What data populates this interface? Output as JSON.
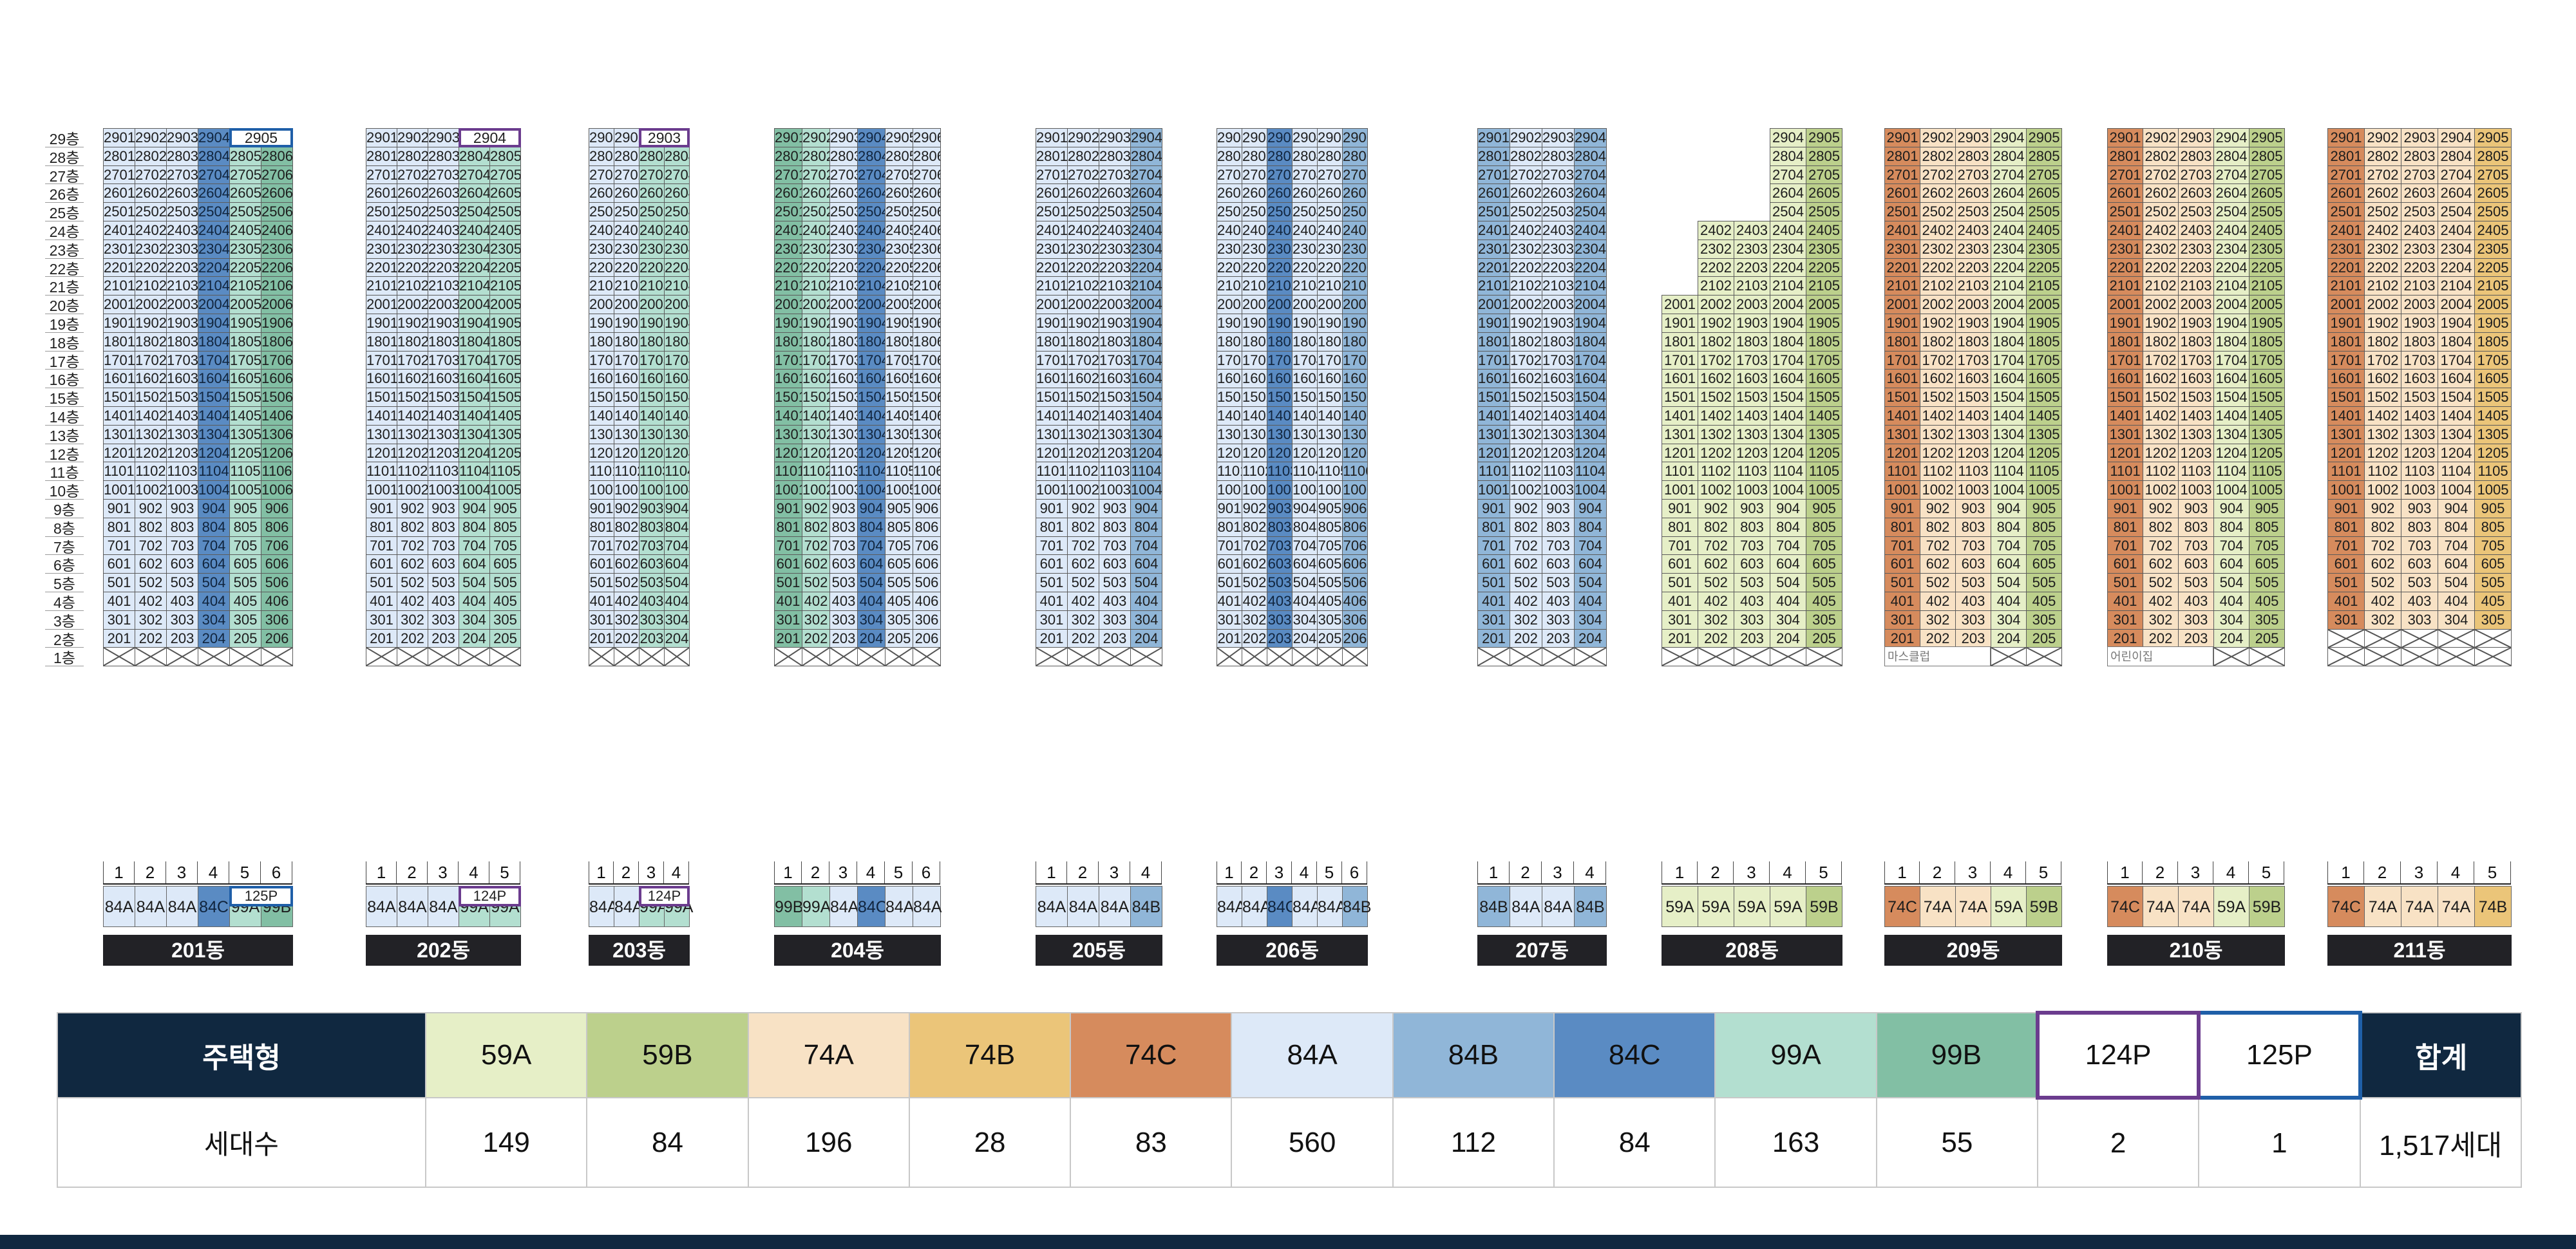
{
  "floor_labels": [
    "29층",
    "28층",
    "27층",
    "26층",
    "25층",
    "24층",
    "23층",
    "22층",
    "21층",
    "20층",
    "19층",
    "18층",
    "17층",
    "16층",
    "15층",
    "14층",
    "13층",
    "12층",
    "11층",
    "10층",
    "9층",
    "8층",
    "7층",
    "6층",
    "5층",
    "4층",
    "3층",
    "2층",
    "1층"
  ],
  "colors": {
    "59A": "#e6efc7",
    "59B": "#bcd08c",
    "74A": "#f8e2c5",
    "74B": "#ebc579",
    "74C": "#d68b5d",
    "84A": "#dde9f8",
    "84B": "#90b6d8",
    "84C": "#5a8bc3",
    "99A": "#b3dfd0",
    "99B": "#82bfa4",
    "124P": "#6b3c8e",
    "125P": "#1f5fa8"
  },
  "buildings": [
    {
      "name": "201동",
      "lines": [
        "1",
        "2",
        "3",
        "4",
        "5",
        "6"
      ],
      "types": [
        "84A",
        "84A",
        "84A",
        "84C",
        "99A",
        "99B"
      ],
      "penthouse": {
        "label": "2905",
        "type": "125P"
      },
      "note": ""
    },
    {
      "name": "202동",
      "lines": [
        "1",
        "2",
        "3",
        "4",
        "5"
      ],
      "types": [
        "84A",
        "84A",
        "84A",
        "99A",
        "99A"
      ],
      "penthouse": {
        "label": "2904",
        "type": "124P"
      },
      "note": ""
    },
    {
      "name": "203동",
      "lines": [
        "1",
        "2",
        "3",
        "4"
      ],
      "types": [
        "84A",
        "84A",
        "99A",
        "99A"
      ],
      "penthouse": {
        "label": "2903",
        "type": "124P"
      },
      "note": ""
    },
    {
      "name": "204동",
      "lines": [
        "1",
        "2",
        "3",
        "4",
        "5",
        "6"
      ],
      "types": [
        "99B",
        "99A",
        "84A",
        "84C",
        "84A",
        "84A"
      ],
      "penthouse": null,
      "note": ""
    },
    {
      "name": "205동",
      "lines": [
        "1",
        "2",
        "3",
        "4"
      ],
      "types": [
        "84A",
        "84A",
        "84A",
        "84B"
      ],
      "penthouse": null,
      "note": ""
    },
    {
      "name": "206동",
      "lines": [
        "1",
        "2",
        "3",
        "4",
        "5",
        "6"
      ],
      "types": [
        "84A",
        "84A",
        "84C",
        "84A",
        "84A",
        "84B"
      ],
      "penthouse": null,
      "note": ""
    },
    {
      "name": "207동",
      "lines": [
        "1",
        "2",
        "3",
        "4"
      ],
      "types": [
        "84B",
        "84A",
        "84A",
        "84B"
      ],
      "penthouse": null,
      "note": ""
    },
    {
      "name": "208동",
      "lines": [
        "1",
        "2",
        "3",
        "4",
        "5"
      ],
      "types": [
        "59A",
        "59A",
        "59A",
        "59A",
        "59B"
      ],
      "penthouse": null,
      "note": ""
    },
    {
      "name": "209동",
      "lines": [
        "1",
        "2",
        "3",
        "4",
        "5"
      ],
      "types": [
        "74C",
        "74A",
        "74A",
        "59A",
        "59B"
      ],
      "penthouse": null,
      "note": "마스클럽"
    },
    {
      "name": "210동",
      "lines": [
        "1",
        "2",
        "3",
        "4",
        "5"
      ],
      "types": [
        "74C",
        "74A",
        "74A",
        "59A",
        "59B"
      ],
      "penthouse": null,
      "note": "어린이집"
    },
    {
      "name": "211동",
      "lines": [
        "1",
        "2",
        "3",
        "4",
        "5"
      ],
      "types": [
        "74C",
        "74A",
        "74A",
        "74A",
        "74B"
      ],
      "penthouse": null,
      "note": ""
    }
  ],
  "legend": {
    "type_header": "주택형",
    "count_header": "세대수",
    "total_header": "합계",
    "types": [
      {
        "name": "59A",
        "count": "149"
      },
      {
        "name": "59B",
        "count": "84"
      },
      {
        "name": "74A",
        "count": "196"
      },
      {
        "name": "74B",
        "count": "28"
      },
      {
        "name": "74C",
        "count": "83"
      },
      {
        "name": "84A",
        "count": "560"
      },
      {
        "name": "84B",
        "count": "112"
      },
      {
        "name": "84C",
        "count": "84"
      },
      {
        "name": "99A",
        "count": "163"
      },
      {
        "name": "99B",
        "count": "55"
      },
      {
        "name": "124P",
        "count": "2"
      },
      {
        "name": "125P",
        "count": "1"
      }
    ],
    "total": "1,517세대"
  }
}
